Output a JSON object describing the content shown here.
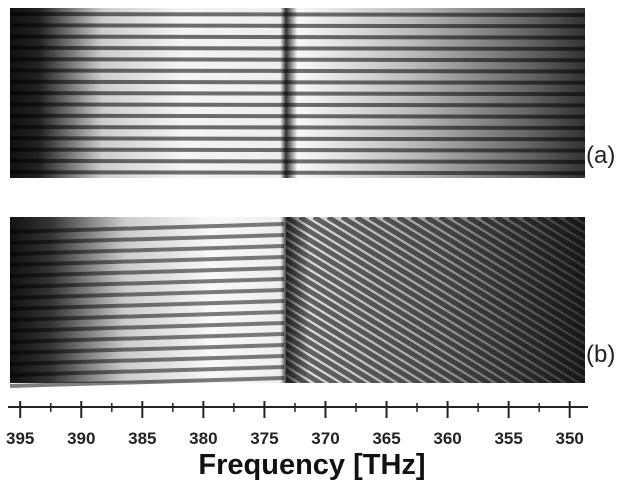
{
  "panels": [
    {
      "label": "(a)"
    },
    {
      "label": "(b)"
    }
  ],
  "axis": {
    "label": "Frequency [THz]",
    "xlim": [
      396,
      348.5
    ],
    "ticks": [
      395,
      390,
      385,
      380,
      375,
      370,
      365,
      360,
      355,
      350
    ],
    "minor_ticks": [
      392.5,
      387.5,
      382.5,
      377.5,
      372.5,
      367.5,
      362.5,
      357.5,
      352.5
    ]
  }
}
